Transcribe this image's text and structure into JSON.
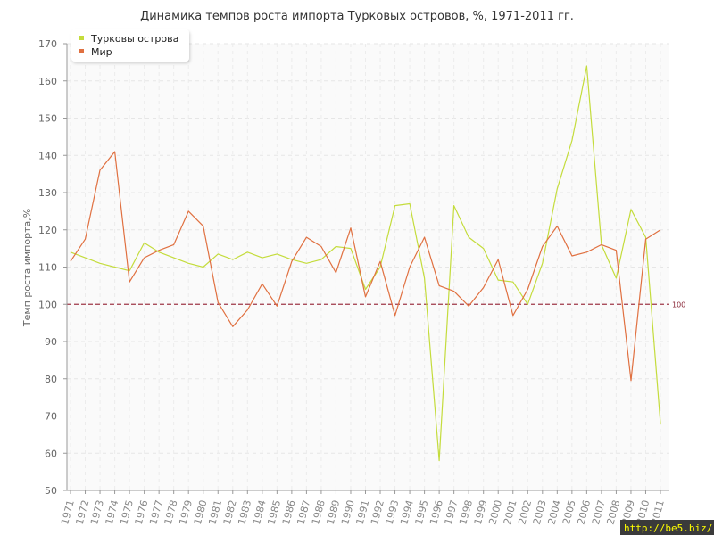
{
  "chart_data": {
    "type": "line",
    "title": "Динамика темпов роста импорта Турковых островов, %, 1971-2011 гг.",
    "xlabel": "",
    "ylabel": "Темп роста импорта,%",
    "ylim": [
      50,
      170
    ],
    "yticks": [
      50,
      60,
      70,
      80,
      90,
      100,
      110,
      120,
      130,
      140,
      150,
      160,
      170
    ],
    "grid": true,
    "legend_position": "top-left",
    "reference_line": {
      "value": 100,
      "label": "100",
      "color": "#a03a4a"
    },
    "x": [
      "1971",
      "1972",
      "1973",
      "1974",
      "1975",
      "1976",
      "1977",
      "1978",
      "1979",
      "1980",
      "1981",
      "1982",
      "1983",
      "1984",
      "1985",
      "1986",
      "1987",
      "1988",
      "1989",
      "1990",
      "1991",
      "1992",
      "1993",
      "1994",
      "1995",
      "1996",
      "1997",
      "1998",
      "1999",
      "2000",
      "2001",
      "2002",
      "2003",
      "2004",
      "2005",
      "2006",
      "2007",
      "2008",
      "2009",
      "2010",
      "2011"
    ],
    "series": [
      {
        "name": "Турковы острова",
        "color": "#c4dc3c",
        "values": [
          114,
          112.5,
          111,
          110,
          109,
          116.5,
          114,
          112.5,
          111,
          110,
          113.5,
          112,
          114,
          112.5,
          113.5,
          112,
          111,
          112,
          115.5,
          115,
          104,
          110,
          126.5,
          127,
          107,
          58,
          126.5,
          118,
          115,
          106.5,
          106,
          100,
          111,
          131,
          144,
          164,
          116,
          107,
          125.5,
          118,
          68
        ]
      },
      {
        "name": "Мир",
        "color": "#e07040",
        "values": [
          111.5,
          117.5,
          136,
          141,
          106,
          112.5,
          114.5,
          116,
          125,
          121,
          100.5,
          94,
          98.5,
          105.5,
          99.5,
          111.5,
          118,
          115.5,
          108.5,
          120.5,
          102,
          111.5,
          97,
          110,
          118,
          105,
          103.5,
          99.5,
          104.5,
          112,
          97,
          104,
          115.5,
          121,
          113,
          114,
          116,
          114.5,
          79.5,
          117.5,
          120
        ]
      }
    ]
  },
  "watermark": "http://be5.biz/"
}
